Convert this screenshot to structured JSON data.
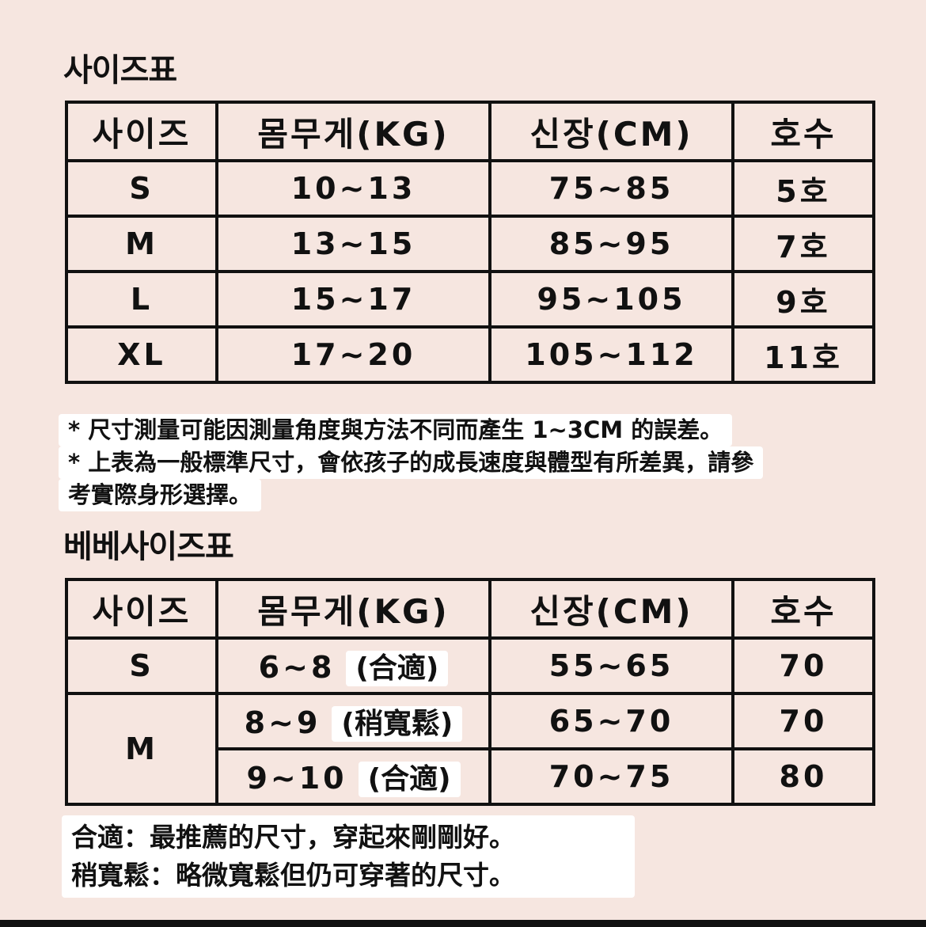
{
  "title1": "사이즈표",
  "headers": [
    "사이즈",
    "몸무게(KG)",
    "신장(CM)",
    "호수"
  ],
  "table1": [
    [
      "S",
      "10~13",
      "75~85",
      "5호"
    ],
    [
      "M",
      "13~15",
      "85~95",
      "7호"
    ],
    [
      "L",
      "15~17",
      "95~105",
      "9호"
    ],
    [
      "XL",
      "17~20",
      "105~112",
      "11호"
    ]
  ],
  "notes": [
    "* 尺寸測量可能因測量角度與方法不同而產生 1~3CM 的誤差。",
    "* 上表為一般標準尺寸，會依孩子的成長速度與體型有所差異，請參",
    "考實際身形選擇。"
  ],
  "title2": "베베사이즈표",
  "table2": [
    {
      "size": "S",
      "weight": "6~8",
      "fit": "(合適)",
      "height": "55~65",
      "no": "70"
    },
    {
      "size": "M",
      "weight": "8~9",
      "fit": "(稍寬鬆)",
      "height": "65~70",
      "no": "70"
    },
    {
      "size": "",
      "weight": "9~10",
      "fit": "(合適)",
      "height": "70~75",
      "no": "80"
    }
  ],
  "legend": [
    "合適：最推薦的尺寸，穿起來剛剛好。",
    "稍寬鬆：略微寬鬆但仍可穿著的尺寸。"
  ]
}
